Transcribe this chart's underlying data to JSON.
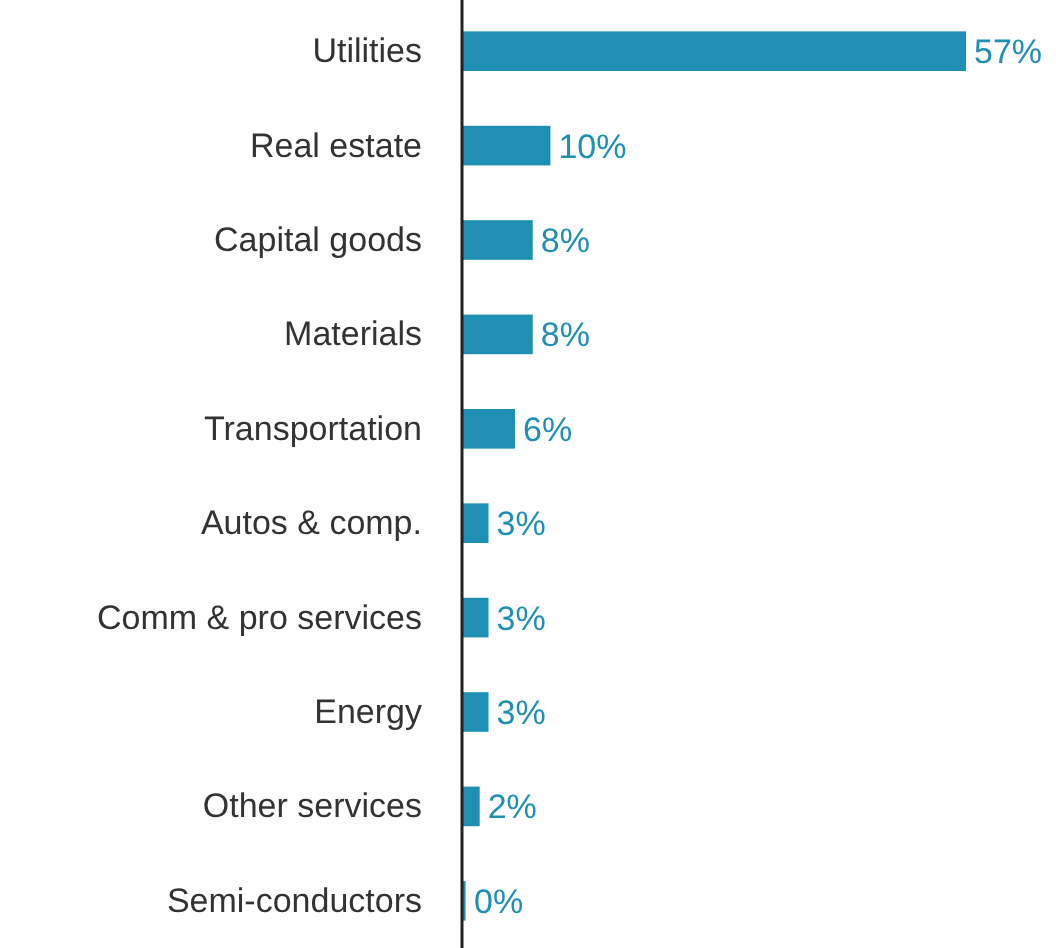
{
  "chart_data": {
    "type": "bar",
    "orientation": "horizontal",
    "categories": [
      "Utilities",
      "Real estate",
      "Capital goods",
      "Materials",
      "Transportation",
      "Autos & comp.",
      "Comm & pro services",
      "Energy",
      "Other services",
      "Semi-conductors"
    ],
    "values": [
      57,
      10,
      8,
      8,
      6,
      3,
      3,
      3,
      2,
      0.4
    ],
    "value_labels": [
      "57%",
      "10%",
      "8%",
      "8%",
      "6%",
      "3%",
      "3%",
      "3%",
      "2%",
      "0%"
    ],
    "color": "#1f8fb3"
  }
}
